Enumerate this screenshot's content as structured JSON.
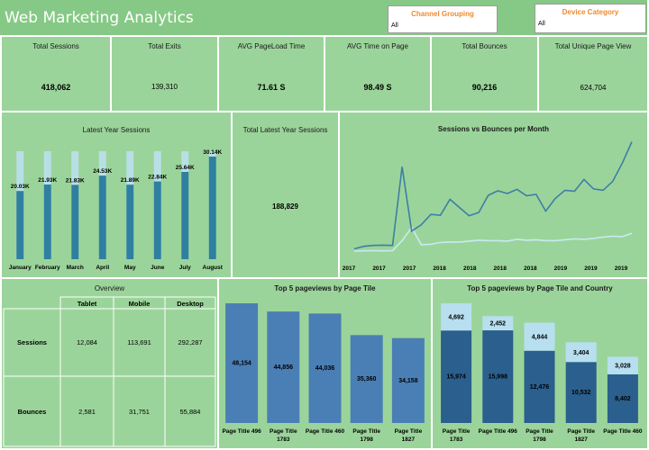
{
  "header": {
    "title": "Web Marketing Analytics"
  },
  "filters": {
    "channel": {
      "label": "Channel Grouping",
      "value": "All"
    },
    "device": {
      "label": "Device Category",
      "value": "All"
    }
  },
  "kpis": [
    {
      "label": "Total Sessions",
      "value": "418,062"
    },
    {
      "label": "Total Exits",
      "value": "139,310"
    },
    {
      "label": "AVG PageLoad Time",
      "value": "71.61 S"
    },
    {
      "label": "AVG Time on Page",
      "value": "98.49 S"
    },
    {
      "label": "Total Bounces",
      "value": "90,216"
    },
    {
      "label": "Total Unique Page View",
      "value": "624,704"
    }
  ],
  "latest_sessions": {
    "title": "Latest Year Sessions"
  },
  "total_latest": {
    "label": "Total Latest Year Sessions",
    "value": "188,829"
  },
  "sessions_bounces": {
    "title": "Sessions vs Bounces per Month"
  },
  "overview": {
    "title": "Overview",
    "columns": [
      "Tablet",
      "Mobile",
      "Desktop"
    ],
    "rows": [
      {
        "label": "Sessions",
        "values": [
          "12,084",
          "113,691",
          "292,287"
        ]
      },
      {
        "label": "Bounces",
        "values": [
          "2,581",
          "31,751",
          "55,884"
        ]
      }
    ]
  },
  "top5": {
    "title": "Top 5 pageviews by Page Tile"
  },
  "top5_country": {
    "title": "Top 5 pageviews by Page Tile and Country"
  },
  "chart_data": [
    {
      "type": "bar",
      "title": "Latest Year Sessions",
      "categories": [
        "January",
        "February",
        "March",
        "April",
        "May",
        "June",
        "July",
        "August"
      ],
      "values": [
        20.03,
        21.93,
        21.83,
        24.53,
        21.89,
        22.84,
        25.64,
        30.14
      ],
      "labels": [
        "20.03K",
        "21.93K",
        "21.83K",
        "24.53K",
        "21.89K",
        "22.84K",
        "25.64K",
        "30.14K"
      ],
      "ylim": [
        0,
        30.14
      ],
      "colors": {
        "bar": "#2f7fa0",
        "background_bar": "#b8dfe6"
      }
    },
    {
      "type": "line",
      "title": "Sessions vs Bounces per Month",
      "x_ticks": [
        "2017",
        "2017",
        "2017",
        "2018",
        "2018",
        "2018",
        "2018",
        "2019",
        "2019",
        "2019"
      ],
      "series": [
        {
          "values": [
            900,
            1450,
            1650,
            1700,
            1650,
            19000,
            4800,
            6200,
            8500,
            8300,
            11800,
            10000,
            8200,
            8900,
            12700,
            13700,
            13100,
            14000,
            12600,
            12900,
            9200,
            12000,
            13800,
            13600,
            16200,
            14100,
            13800,
            15800,
            19800,
            24500
          ]
        },
        {
          "values": [
            400,
            450,
            500,
            450,
            500,
            2700,
            5600,
            1800,
            1900,
            2300,
            2400,
            2400,
            2600,
            2800,
            2700,
            2700,
            2600,
            3000,
            2800,
            2900,
            2700,
            2700,
            2900,
            3100,
            3000,
            3200,
            3500,
            3700,
            3600,
            4300
          ]
        }
      ],
      "colors": {
        "sessions": "#3d7ea6",
        "bounces": "#c8eaf1"
      }
    },
    {
      "type": "bar",
      "title": "Top 5 pageviews by Page Tile",
      "categories": [
        "Page Title 496",
        "Page Title 1783",
        "Page Title 460",
        "Page Title 1798",
        "Page Title 1827"
      ],
      "values": [
        48154,
        44856,
        44036,
        35360,
        34158
      ],
      "labels": [
        "48,154",
        "44,856",
        "44,036",
        "35,360",
        "34,158"
      ],
      "category_lines": [
        [
          "Page Title 496"
        ],
        [
          "Page Title",
          "1783"
        ],
        [
          "Page Title 460"
        ],
        [
          "Page Title",
          "1798"
        ],
        [
          "Page Title",
          "1827"
        ]
      ],
      "colors": {
        "bar": "#4a7fb5"
      }
    },
    {
      "type": "bar",
      "title": "Top 5 pageviews by Page Tile and Country",
      "stacked": true,
      "categories": [
        "Page Title 1783",
        "Page Title 496",
        "Page Title 1798",
        "Page Title 1827",
        "Page Title 460"
      ],
      "category_lines": [
        [
          "Page Title",
          "1783"
        ],
        [
          "Page Title 496"
        ],
        [
          "Page Title",
          "1798"
        ],
        [
          "Page Title",
          "1827"
        ],
        [
          "Page Title 460"
        ]
      ],
      "series": [
        {
          "values": [
            15974,
            15998,
            12476,
            10532,
            8402
          ],
          "labels": [
            "15,974",
            "15,998",
            "12,476",
            "10,532",
            "8,402"
          ]
        },
        {
          "values": [
            4692,
            2452,
            4844,
            3404,
            3028
          ],
          "labels": [
            "4,692",
            "2,452",
            "4,844",
            "3,404",
            "3,028"
          ]
        }
      ],
      "colors": {
        "bottom": "#2b5f8d",
        "top": "#b7dff0"
      }
    }
  ]
}
